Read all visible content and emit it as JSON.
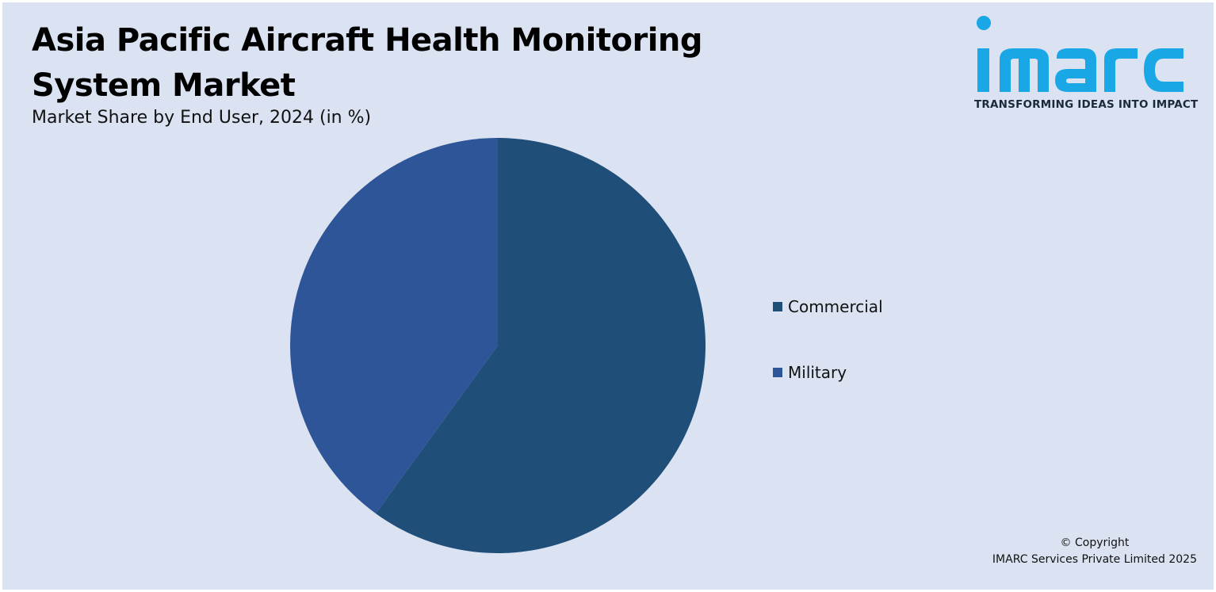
{
  "header": {
    "title": "Asia Pacific Aircraft Health Monitoring System Market",
    "subtitle": "Market Share by End User, 2024 (in %)"
  },
  "logo": {
    "wordmark": "imarc",
    "tagline": "TRANSFORMING IDEAS INTO IMPACT",
    "color": "#1aa7e6"
  },
  "chart_data": {
    "type": "pie",
    "title": "Asia Pacific Aircraft Health Monitoring System Market",
    "subtitle": "Market Share by End User, 2024 (in %)",
    "categories": [
      "Commercial",
      "Military"
    ],
    "values": [
      60,
      40
    ],
    "colors": [
      "#1f4e79",
      "#2e5597"
    ],
    "start_angle": "12 o'clock",
    "direction": "clockwise",
    "legend": "right"
  },
  "legend": {
    "items": [
      {
        "label": "Commercial",
        "color": "#1f4e79"
      },
      {
        "label": "Military",
        "color": "#2e5597"
      }
    ]
  },
  "footer": {
    "copyright_line1": "© Copyright",
    "copyright_line2": "IMARC Services Private Limited 2025"
  }
}
